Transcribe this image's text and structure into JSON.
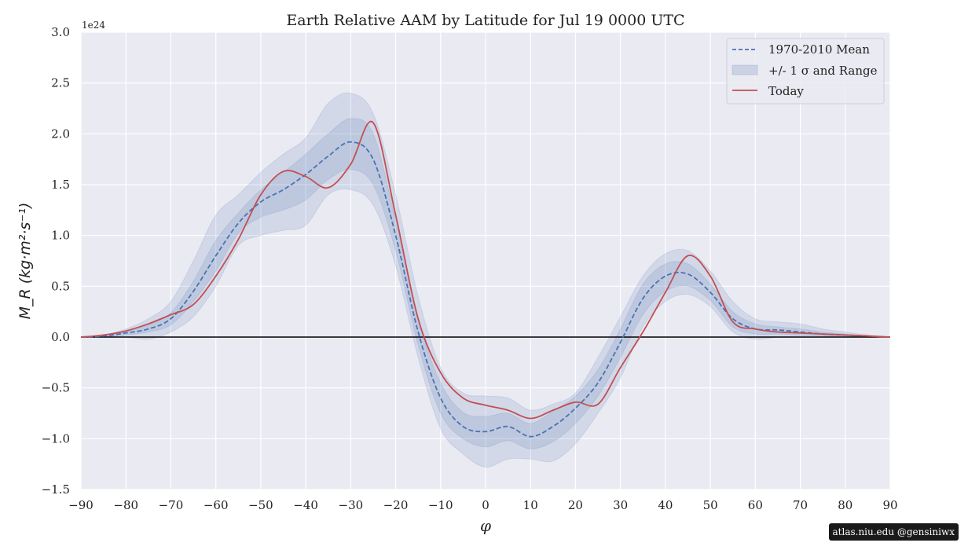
{
  "chart_data": {
    "type": "line",
    "title": "Earth Relative AAM by Latitude for Jul 19 0000 UTC",
    "xlabel": "φ",
    "ylabel": "M_R (kg·m²·s⁻¹)",
    "y_multiplier": "1e24",
    "xlim": [
      -90,
      90
    ],
    "ylim": [
      -1.5,
      3.0
    ],
    "x_ticks": [
      -90,
      -80,
      -70,
      -60,
      -50,
      -40,
      -30,
      -20,
      -10,
      0,
      10,
      20,
      30,
      40,
      50,
      60,
      70,
      80,
      90
    ],
    "x_tick_labels": [
      "−90",
      "−80",
      "−70",
      "−60",
      "−50",
      "−40",
      "−30",
      "−20",
      "−10",
      "0",
      "10",
      "20",
      "30",
      "40",
      "50",
      "60",
      "70",
      "80",
      "90"
    ],
    "y_ticks": [
      -1.5,
      -1.0,
      -0.5,
      0.0,
      0.5,
      1.0,
      1.5,
      2.0,
      2.5,
      3.0
    ],
    "y_tick_labels": [
      "−1.5",
      "−1.0",
      "−0.5",
      "0.0",
      "0.5",
      "1.0",
      "1.5",
      "2.0",
      "2.5",
      "3.0"
    ],
    "grid": true,
    "legend_position": "top-right",
    "x": [
      -90,
      -85,
      -80,
      -75,
      -70,
      -65,
      -60,
      -55,
      -50,
      -45,
      -40,
      -35,
      -30,
      -25,
      -20,
      -15,
      -10,
      -5,
      0,
      5,
      10,
      15,
      20,
      25,
      30,
      35,
      40,
      45,
      50,
      55,
      60,
      65,
      70,
      75,
      80,
      85,
      90
    ],
    "series": [
      {
        "name": "1970-2010 Mean",
        "style": "dashed",
        "color": "#4c72b0",
        "values": [
          0,
          0.01,
          0.04,
          0.08,
          0.18,
          0.45,
          0.8,
          1.12,
          1.33,
          1.45,
          1.6,
          1.78,
          1.92,
          1.75,
          1.0,
          0.05,
          -0.6,
          -0.88,
          -0.93,
          -0.88,
          -0.98,
          -0.88,
          -0.7,
          -0.45,
          -0.05,
          0.38,
          0.6,
          0.62,
          0.44,
          0.18,
          0.08,
          0.07,
          0.05,
          0.03,
          0.02,
          0.01,
          0
        ]
      },
      {
        "name": "Today",
        "style": "solid",
        "color": "#c44e52",
        "values": [
          0,
          0.02,
          0.06,
          0.13,
          0.22,
          0.32,
          0.6,
          0.96,
          1.4,
          1.63,
          1.58,
          1.47,
          1.7,
          2.11,
          1.2,
          0.18,
          -0.35,
          -0.6,
          -0.67,
          -0.72,
          -0.8,
          -0.72,
          -0.64,
          -0.66,
          -0.3,
          0.05,
          0.44,
          0.8,
          0.6,
          0.15,
          0.08,
          0.05,
          0.04,
          0.03,
          0.02,
          0.01,
          0
        ]
      }
    ],
    "bands": [
      {
        "name": "+/- 1 σ and Range",
        "kind": "range",
        "lower": [
          0,
          0,
          0,
          -0.02,
          0.05,
          0.2,
          0.5,
          0.9,
          1.0,
          1.05,
          1.1,
          1.4,
          1.45,
          1.3,
          0.7,
          -0.2,
          -0.9,
          -1.15,
          -1.28,
          -1.2,
          -1.2,
          -1.22,
          -1.05,
          -0.75,
          -0.4,
          0.1,
          0.35,
          0.42,
          0.3,
          0.05,
          -0.02,
          0.0,
          0.01,
          0.01,
          0.0,
          0.0,
          0
        ],
        "upper": [
          0,
          0.02,
          0.08,
          0.18,
          0.35,
          0.75,
          1.2,
          1.4,
          1.62,
          1.8,
          1.96,
          2.3,
          2.4,
          2.2,
          1.4,
          0.4,
          -0.3,
          -0.55,
          -0.58,
          -0.6,
          -0.72,
          -0.66,
          -0.55,
          -0.2,
          0.2,
          0.6,
          0.82,
          0.85,
          0.65,
          0.35,
          0.18,
          0.15,
          0.13,
          0.08,
          0.05,
          0.02,
          0
        ]
      },
      {
        "name": "+/- 1 σ",
        "kind": "sigma",
        "lower": [
          0,
          0,
          0.02,
          0.05,
          0.12,
          0.35,
          0.65,
          1.02,
          1.18,
          1.25,
          1.35,
          1.55,
          1.65,
          1.5,
          0.85,
          -0.08,
          -0.75,
          -1.0,
          -1.08,
          -1.02,
          -1.1,
          -1.03,
          -0.85,
          -0.58,
          -0.2,
          0.22,
          0.45,
          0.5,
          0.36,
          0.1,
          0.03,
          0.03,
          0.02,
          0.01,
          0.01,
          0.0,
          0
        ],
        "upper": [
          0,
          0.01,
          0.06,
          0.12,
          0.24,
          0.55,
          0.95,
          1.22,
          1.45,
          1.62,
          1.8,
          2.0,
          2.15,
          2.0,
          1.15,
          0.18,
          -0.45,
          -0.74,
          -0.78,
          -0.75,
          -0.85,
          -0.73,
          -0.58,
          -0.32,
          0.08,
          0.52,
          0.72,
          0.72,
          0.52,
          0.25,
          0.13,
          0.1,
          0.08,
          0.05,
          0.03,
          0.01,
          0
        ]
      }
    ],
    "zero_line": true,
    "colors": {
      "background": "#eaeaf2",
      "grid": "#ffffff",
      "band": "#4c72b0",
      "zero": "#000000"
    }
  },
  "watermark": "atlas.niu.edu  @gensiniwx"
}
